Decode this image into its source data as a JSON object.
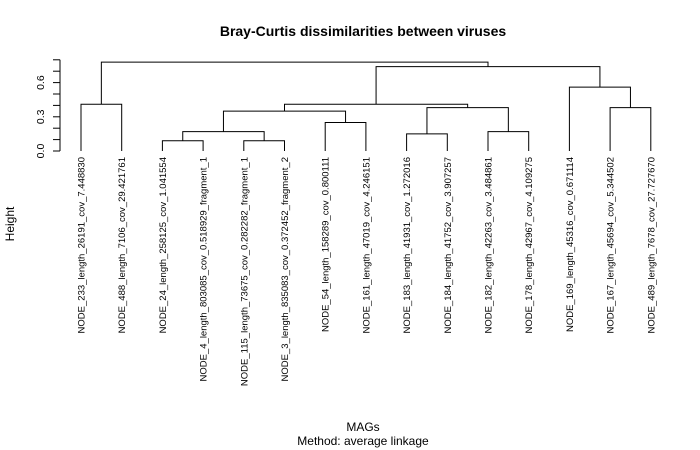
{
  "chart_data": {
    "type": "dendrogram",
    "title": "Bray-Curtis dissimilarities between viruses",
    "xlabel": "MAGs",
    "sublabel": "Method: average linkage",
    "ylabel": "Height",
    "y_ticks": [
      "0.0",
      "0.3",
      "0.6"
    ],
    "y_tick_values": [
      0.0,
      0.3,
      0.6
    ],
    "ylim": [
      0,
      0.8
    ],
    "leaves": [
      "NODE_233_length_26191_cov_7.448830",
      "NODE_488_length_7106_cov_29.421761",
      "NODE_24_length_258125_cov_1.041554",
      "NODE_4_length_803085_cov_0.518929_fragment_1",
      "NODE_115_length_73675_cov_0.282282_fragment_1",
      "NODE_3_length_835083_cov_0.372452_fragment_2",
      "NODE_54_length_158289_cov_0.800111",
      "NODE_161_length_47019_cov_4.246151",
      "NODE_183_length_41931_cov_1.272016",
      "NODE_184_length_41752_cov_3.907257",
      "NODE_182_length_42263_cov_3.484861",
      "NODE_178_length_42967_cov_4.109275",
      "NODE_169_length_45316_cov_0.671114",
      "NODE_167_length_45694_cov_5.344502",
      "NODE_489_length_7678_cov_27.727670"
    ],
    "merges": [
      {
        "left": "L2",
        "right": "L3",
        "height": 0.09
      },
      {
        "left": "L4",
        "right": "L5",
        "height": 0.09
      },
      {
        "left": "M0",
        "right": "M1",
        "height": 0.17
      },
      {
        "left": "L8",
        "right": "L9",
        "height": 0.15
      },
      {
        "left": "L10",
        "right": "L11",
        "height": 0.17
      },
      {
        "left": "L7",
        "right": "L6",
        "height": 0.25
      },
      {
        "left": "M3",
        "right": "M4",
        "height": 0.38
      },
      {
        "left": "M2",
        "right": "M5",
        "height": 0.35
      },
      {
        "left": "M7",
        "right": "M6",
        "height": 0.41
      },
      {
        "left": "L13",
        "right": "L14",
        "height": 0.38
      },
      {
        "left": "L12",
        "right": "M9",
        "height": 0.56
      },
      {
        "left": "M8",
        "right": "M10",
        "height": 0.74
      },
      {
        "left": "L0",
        "right": "L1",
        "height": 0.41
      },
      {
        "left": "M12",
        "right": "M11",
        "height": 0.78
      }
    ]
  }
}
